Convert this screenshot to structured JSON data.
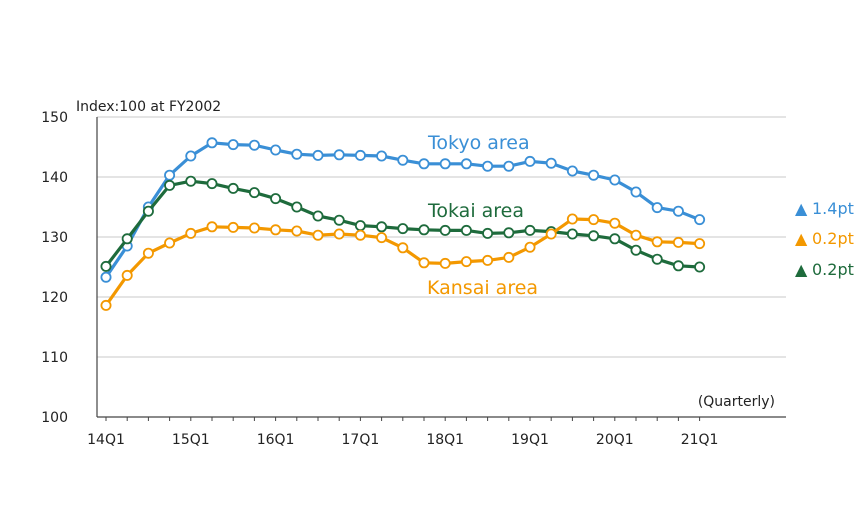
{
  "chart_data": {
    "type": "line",
    "ylabel": "Index:100 at FY2002",
    "frequency_note": "(Quarterly)",
    "ylim": [
      100,
      150
    ],
    "yticks": [
      100,
      110,
      120,
      130,
      140,
      150
    ],
    "x_tick_labels": [
      "14Q1",
      "15Q1",
      "16Q1",
      "17Q1",
      "18Q1",
      "19Q1",
      "20Q1",
      "21Q1"
    ],
    "grid": "horizontal",
    "x_start": "14Q1",
    "series": [
      {
        "name": "Tokyo area",
        "color": "#3a8fd6",
        "change_label": "1.4pt",
        "change_symbol": "▲",
        "values": [
          123.3,
          128.5,
          135,
          140.3,
          143.5,
          145.7,
          145.4,
          145.3,
          144.5,
          143.8,
          143.6,
          143.7,
          143.6,
          143.5,
          142.8,
          142.2,
          142.2,
          142.2,
          141.8,
          141.8,
          142.6,
          142.3,
          141,
          140.3,
          139.5,
          137.5,
          134.9,
          134.3,
          132.9
        ]
      },
      {
        "name": "Tokai area",
        "color": "#1e6b3c",
        "change_label": "0.2pt",
        "change_symbol": "▲",
        "values": [
          125.1,
          129.7,
          134.3,
          138.6,
          139.3,
          138.9,
          138.1,
          137.4,
          136.4,
          135,
          133.5,
          132.8,
          131.9,
          131.7,
          131.4,
          131.2,
          131.1,
          131.1,
          130.6,
          130.7,
          131.1,
          130.9,
          130.5,
          130.2,
          129.7,
          127.8,
          126.3,
          125.2,
          125
        ]
      },
      {
        "name": "Kansai area",
        "color": "#f39800",
        "change_label": "0.2pt",
        "change_symbol": "▲",
        "values": [
          118.6,
          123.6,
          127.3,
          129,
          130.6,
          131.7,
          131.6,
          131.5,
          131.2,
          131,
          130.3,
          130.5,
          130.3,
          129.9,
          128.2,
          125.7,
          125.6,
          125.9,
          126.1,
          126.6,
          128.3,
          130.5,
          133,
          132.9,
          132.3,
          130.3,
          129.2,
          129.1,
          128.9
        ]
      }
    ]
  }
}
